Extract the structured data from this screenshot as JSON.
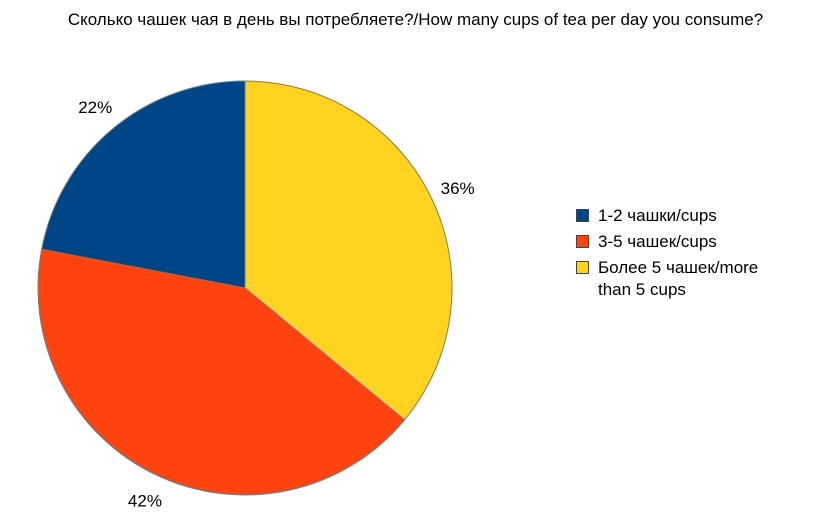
{
  "chart_data": {
    "type": "pie",
    "title": "Сколько чашек чая в день вы потребляете?/How many cups of tea per day you consume?",
    "slices": [
      {
        "label": "1-2 чашки/cups",
        "value": 22,
        "value_label": "22%",
        "color": "#004586"
      },
      {
        "label": "3-5 чашек/cups",
        "value": 42,
        "value_label": "42%",
        "color": "#ff420e"
      },
      {
        "label": "Более 5 чашек/more than 5 cups",
        "value": 36,
        "value_label": "36%",
        "color": "#ffd320"
      }
    ],
    "legend_position": "right"
  },
  "colors": {
    "slice_border": "#7a7a7a"
  }
}
